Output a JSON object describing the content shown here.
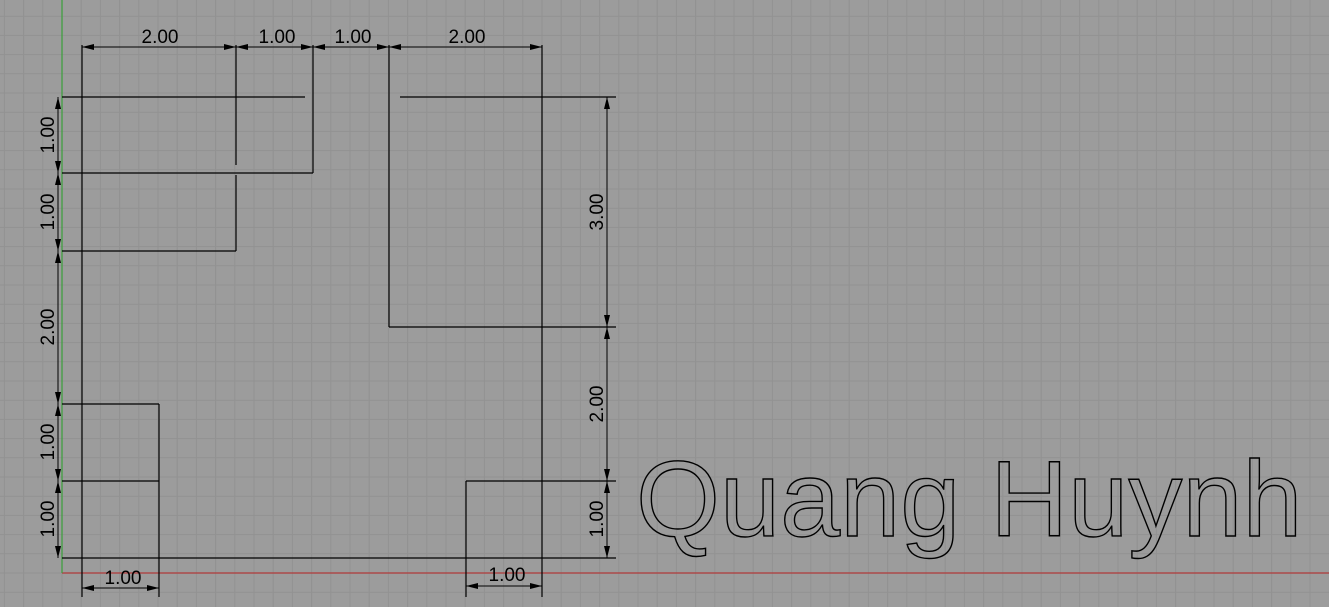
{
  "drawing": {
    "title_text": "Quang Huynh",
    "axis_colors": {
      "x_axis": "#b03a3a",
      "y_axis": "#3aa03a"
    },
    "dimensions_top": [
      "2.00",
      "1.00",
      "1.00",
      "2.00"
    ],
    "dimensions_left": [
      "1.00",
      "1.00",
      "2.00",
      "1.00",
      "1.00"
    ],
    "dimensions_right": [
      "3.00",
      "2.00",
      "1.00"
    ],
    "dimensions_bottom": [
      "1.00",
      "1.00"
    ]
  }
}
